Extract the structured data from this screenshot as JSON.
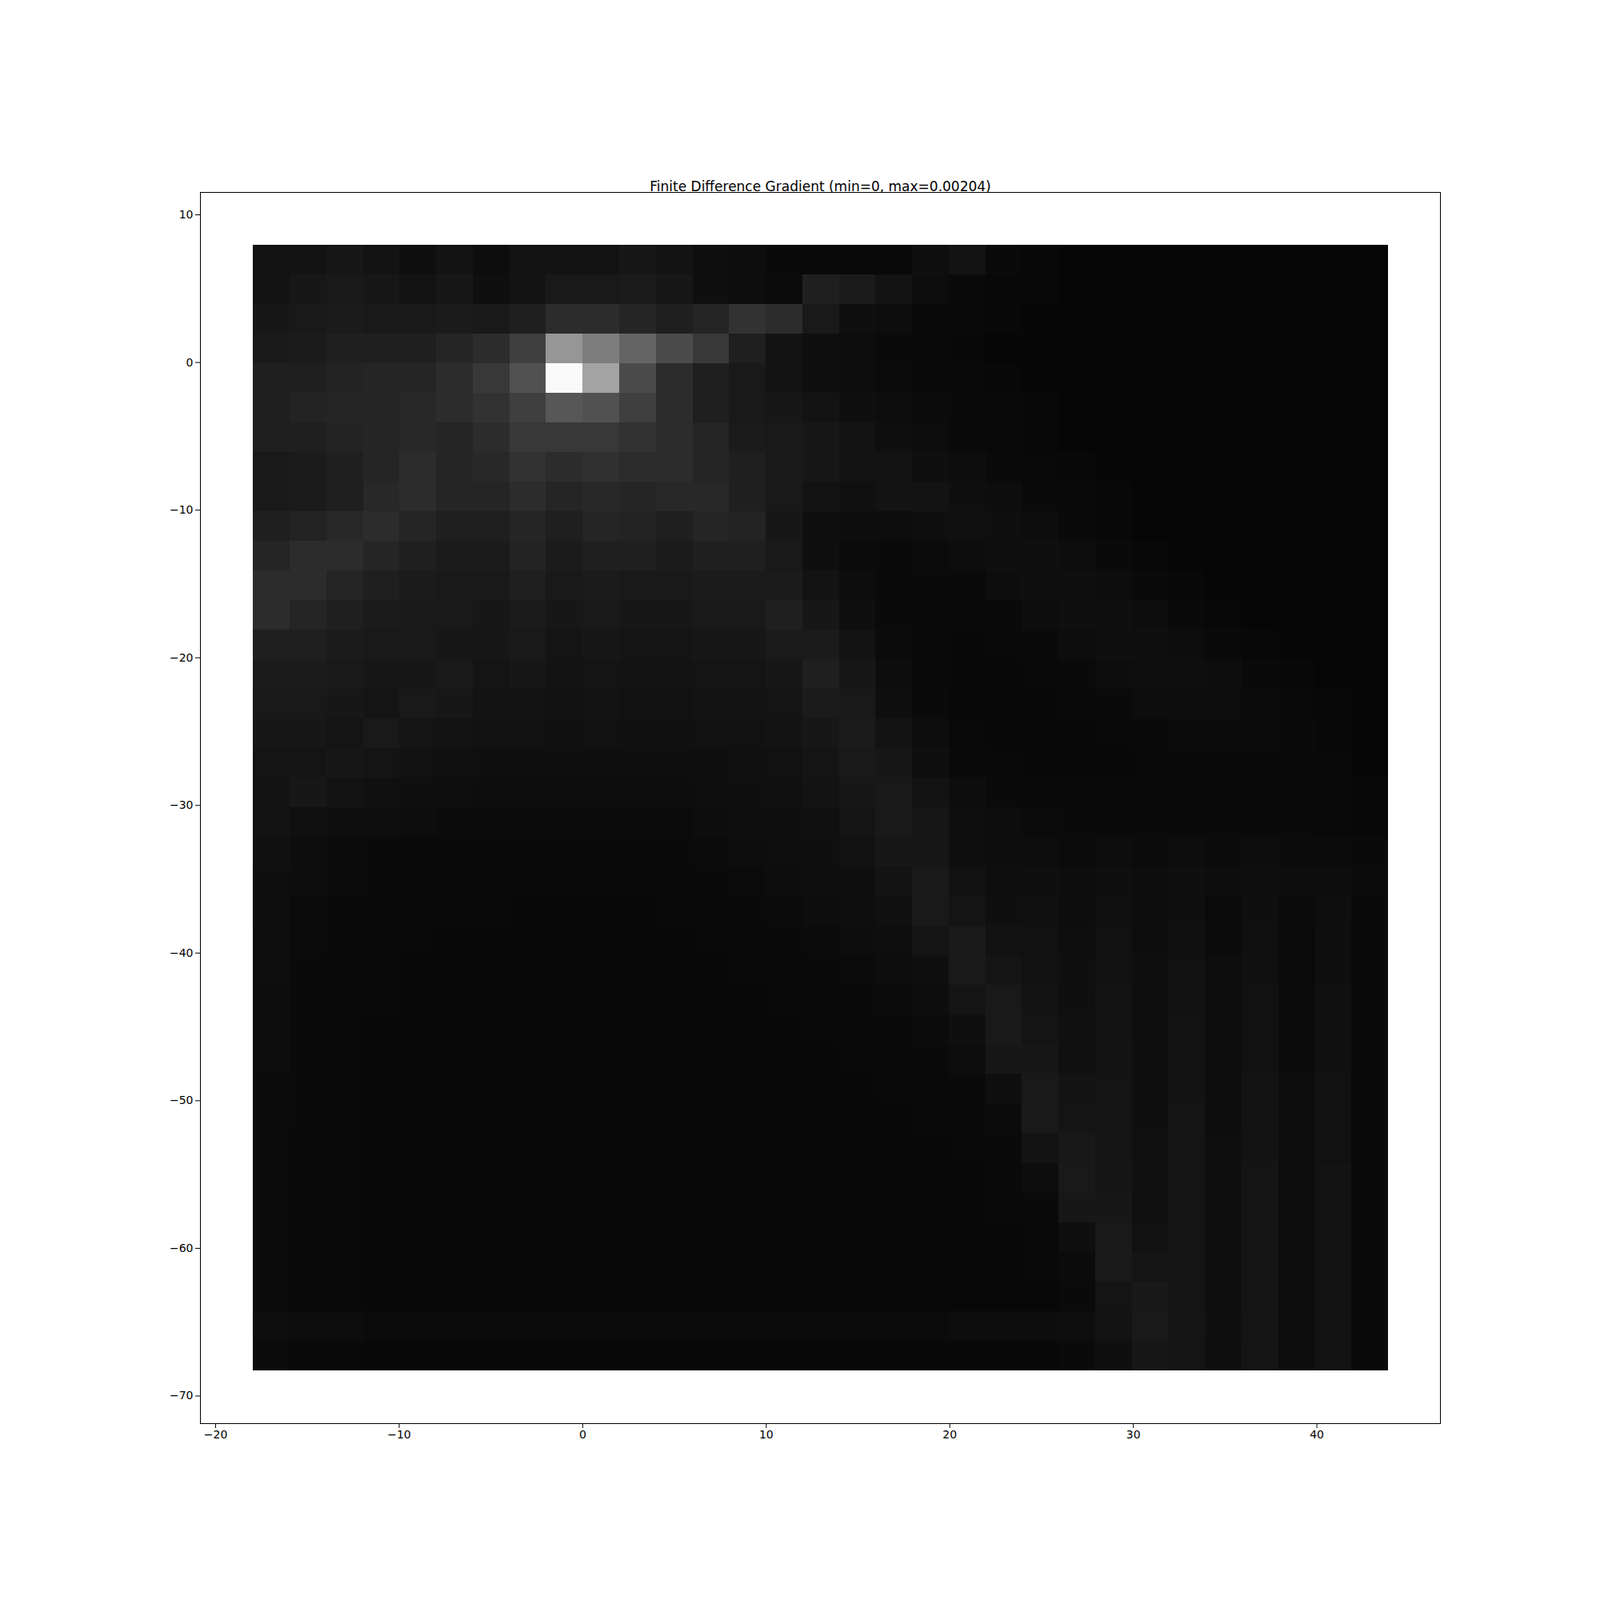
{
  "chart_data": {
    "type": "heatmap",
    "title": "Finite Difference Gradient (min=0, max=0.00204)",
    "xlim": [
      -20.83,
      46.73
    ],
    "ylim": [
      -71.87,
      11.52
    ],
    "xticks": [
      -20,
      -10,
      0,
      10,
      20,
      30,
      40
    ],
    "yticks": [
      -70,
      -60,
      -50,
      -40,
      -30,
      -20,
      -10,
      0,
      10
    ],
    "color": "gray",
    "color_range": [
      0,
      0.00204
    ],
    "cells_xlim": [
      -17.94,
      43.9
    ],
    "cells_ylim": [
      -68.27,
      7.93
    ],
    "cells": [
      [
        0.00015,
        0.00015,
        0.00018,
        0.00015,
        0.00012,
        0.00015,
        0.0001,
        0.00015,
        0.00015,
        0.00015,
        0.00018,
        0.00015,
        0.00012,
        0.0001,
        8e-05,
        7e-05,
        7e-05,
        7e-05,
        0.00012,
        0.00015,
        8e-05,
        6e-05,
        5e-05,
        5e-05,
        5e-05,
        5e-05,
        5e-05,
        5e-05,
        5e-05,
        5e-05,
        5e-05
      ],
      [
        0.00015,
        0.00018,
        0.0002,
        0.00018,
        0.00015,
        0.00018,
        0.00012,
        0.00015,
        0.0002,
        0.0002,
        0.00022,
        0.00018,
        0.00012,
        0.0001,
        9e-05,
        0.00025,
        0.00022,
        0.00015,
        0.0001,
        8e-05,
        6e-05,
        6e-05,
        5e-05,
        5e-05,
        5e-05,
        5e-05,
        5e-05,
        5e-05,
        5e-05,
        5e-05,
        5e-05
      ],
      [
        0.00018,
        0.0002,
        0.00022,
        0.0002,
        0.0002,
        0.00022,
        0.0002,
        0.00025,
        0.00035,
        0.00035,
        0.0003,
        0.00025,
        0.0003,
        0.0004,
        0.00035,
        0.0002,
        0.00012,
        0.0001,
        8e-05,
        7e-05,
        6e-05,
        5e-05,
        5e-05,
        5e-05,
        5e-05,
        5e-05,
        5e-05,
        5e-05,
        5e-05,
        5e-05,
        5e-05
      ],
      [
        0.0002,
        0.00022,
        0.00025,
        0.00025,
        0.00025,
        0.0003,
        0.00035,
        0.0005,
        0.0012,
        0.001,
        0.0008,
        0.0006,
        0.00045,
        0.00025,
        0.00015,
        0.00012,
        0.0001,
        8e-05,
        7e-05,
        6e-05,
        5e-05,
        5e-05,
        5e-05,
        5e-05,
        5e-05,
        5e-05,
        5e-05,
        5e-05,
        5e-05,
        5e-05,
        5e-05
      ],
      [
        0.00025,
        0.00025,
        0.00028,
        0.0003,
        0.0003,
        0.00035,
        0.00045,
        0.00065,
        0.002,
        0.0013,
        0.0006,
        0.00035,
        0.00025,
        0.0002,
        0.00015,
        0.00012,
        0.0001,
        9e-05,
        8e-05,
        7e-05,
        6e-05,
        5e-05,
        5e-05,
        5e-05,
        5e-05,
        5e-05,
        5e-05,
        5e-05,
        5e-05,
        5e-05,
        5e-05
      ],
      [
        0.00025,
        0.00028,
        0.0003,
        0.0003,
        0.00032,
        0.00035,
        0.0004,
        0.0005,
        0.0007,
        0.00065,
        0.0005,
        0.00035,
        0.00025,
        0.0002,
        0.00018,
        0.00015,
        0.00012,
        0.0001,
        9e-05,
        8e-05,
        7e-05,
        6e-05,
        5e-05,
        5e-05,
        5e-05,
        5e-05,
        5e-05,
        5e-05,
        5e-05,
        5e-05,
        5e-05
      ],
      [
        0.00025,
        0.00025,
        0.00028,
        0.0003,
        0.00032,
        0.0003,
        0.00035,
        0.00045,
        0.00045,
        0.00045,
        0.0004,
        0.00035,
        0.0003,
        0.00022,
        0.0002,
        0.00018,
        0.00015,
        0.00012,
        0.0001,
        8e-05,
        7e-05,
        6e-05,
        5e-05,
        5e-05,
        5e-05,
        5e-05,
        5e-05,
        5e-05,
        5e-05,
        5e-05,
        5e-05
      ],
      [
        0.0002,
        0.00022,
        0.00025,
        0.0003,
        0.00035,
        0.0003,
        0.00032,
        0.0004,
        0.00035,
        0.00038,
        0.00035,
        0.00035,
        0.0003,
        0.00025,
        0.0002,
        0.00018,
        0.00015,
        0.00015,
        0.00012,
        0.0001,
        8e-05,
        7e-05,
        6e-05,
        5e-05,
        5e-05,
        5e-05,
        5e-05,
        5e-05,
        5e-05,
        5e-05,
        5e-05
      ],
      [
        0.0002,
        0.00022,
        0.00025,
        0.00032,
        0.00035,
        0.0003,
        0.0003,
        0.00035,
        0.0003,
        0.00032,
        0.0003,
        0.00032,
        0.00032,
        0.00025,
        0.0002,
        0.00015,
        0.00013,
        0.00015,
        0.00015,
        0.00012,
        0.0001,
        8e-05,
        7e-05,
        6e-05,
        5e-05,
        5e-05,
        5e-05,
        5e-05,
        5e-05,
        5e-05,
        5e-05
      ],
      [
        0.00025,
        0.00028,
        0.00032,
        0.00035,
        0.0003,
        0.00025,
        0.00025,
        0.0003,
        0.00025,
        0.0003,
        0.00028,
        0.00025,
        0.0003,
        0.00028,
        0.00018,
        0.00012,
        0.0001,
        0.0001,
        0.00012,
        0.00013,
        0.00012,
        0.0001,
        8e-05,
        6e-05,
        5e-05,
        5e-05,
        5e-05,
        5e-05,
        5e-05,
        5e-05,
        5e-05
      ],
      [
        0.0003,
        0.00035,
        0.00035,
        0.0003,
        0.00025,
        0.00022,
        0.00022,
        0.00028,
        0.00022,
        0.00025,
        0.00025,
        0.00022,
        0.00025,
        0.00025,
        0.0002,
        0.00012,
        9e-05,
        8e-05,
        9e-05,
        0.0001,
        0.00012,
        0.00012,
        0.0001,
        8e-05,
        6e-05,
        5e-05,
        5e-05,
        5e-05,
        5e-05,
        5e-05,
        5e-05
      ],
      [
        0.00035,
        0.00035,
        0.0003,
        0.00025,
        0.00022,
        0.0002,
        0.0002,
        0.00025,
        0.0002,
        0.00022,
        0.0002,
        0.0002,
        0.00022,
        0.00022,
        0.00022,
        0.00015,
        0.0001,
        8e-05,
        8e-05,
        8e-05,
        0.0001,
        0.00012,
        0.00012,
        0.0001,
        8e-05,
        6e-05,
        5e-05,
        5e-05,
        5e-05,
        5e-05,
        5e-05
      ],
      [
        0.00035,
        0.0003,
        0.00025,
        0.00022,
        0.0002,
        0.0002,
        0.00018,
        0.00022,
        0.00018,
        0.0002,
        0.00018,
        0.00018,
        0.0002,
        0.0002,
        0.00025,
        0.00018,
        0.00012,
        8e-05,
        7e-05,
        7e-05,
        8e-05,
        0.0001,
        0.00012,
        0.00012,
        0.0001,
        8e-05,
        6e-05,
        5e-05,
        5e-05,
        5e-05,
        5e-05
      ],
      [
        0.00025,
        0.00025,
        0.00022,
        0.0002,
        0.0002,
        0.00018,
        0.00018,
        0.0002,
        0.00016,
        0.00018,
        0.00016,
        0.00016,
        0.00018,
        0.00018,
        0.00022,
        0.00022,
        0.00015,
        9e-05,
        7e-05,
        6e-05,
        7e-05,
        8e-05,
        0.0001,
        0.00012,
        0.00012,
        0.0001,
        8e-05,
        6e-05,
        5e-05,
        5e-05,
        5e-05
      ],
      [
        0.00022,
        0.00022,
        0.0002,
        0.00018,
        0.00018,
        0.0002,
        0.00016,
        0.00018,
        0.00015,
        0.00016,
        0.00015,
        0.00015,
        0.00016,
        0.00016,
        0.00018,
        0.00025,
        0.00018,
        0.0001,
        7e-05,
        6e-05,
        6e-05,
        7e-05,
        8e-05,
        0.0001,
        0.00011,
        0.00011,
        0.0001,
        8e-05,
        6e-05,
        5e-05,
        5e-05
      ],
      [
        0.0002,
        0.0002,
        0.00018,
        0.00016,
        0.0002,
        0.00018,
        0.00015,
        0.00015,
        0.00014,
        0.00015,
        0.00014,
        0.00014,
        0.00015,
        0.00015,
        0.00016,
        0.00022,
        0.0002,
        0.00012,
        8e-05,
        6e-05,
        6e-05,
        6e-05,
        7e-05,
        8e-05,
        0.0001,
        0.0001,
        0.0001,
        9e-05,
        7e-05,
        6e-05,
        5e-05
      ],
      [
        0.00018,
        0.00018,
        0.00016,
        0.0002,
        0.00016,
        0.00015,
        0.00014,
        0.00014,
        0.00013,
        0.00014,
        0.00013,
        0.00013,
        0.00014,
        0.00014,
        0.00015,
        0.00018,
        0.00022,
        0.00015,
        0.0001,
        7e-05,
        6e-05,
        6e-05,
        6e-05,
        7e-05,
        8e-05,
        9e-05,
        9e-05,
        9e-05,
        8e-05,
        6e-05,
        5e-05
      ],
      [
        0.00016,
        0.00016,
        0.00018,
        0.00016,
        0.00014,
        0.00013,
        0.00012,
        0.00012,
        0.00012,
        0.00012,
        0.00012,
        0.00012,
        0.00012,
        0.00013,
        0.00014,
        0.00016,
        0.0002,
        0.00018,
        0.00012,
        8e-05,
        7e-05,
        6e-05,
        6e-05,
        6e-05,
        7e-05,
        8e-05,
        8e-05,
        8e-05,
        8e-05,
        7e-05,
        5e-05
      ],
      [
        0.00015,
        0.00018,
        0.00015,
        0.00013,
        0.00012,
        0.00011,
        0.0001,
        0.0001,
        0.0001,
        0.0001,
        0.0001,
        0.0001,
        0.00011,
        0.00012,
        0.00013,
        0.00015,
        0.00018,
        0.0002,
        0.00015,
        0.0001,
        8e-05,
        7e-05,
        7e-05,
        7e-05,
        7e-05,
        7e-05,
        8e-05,
        8e-05,
        8e-05,
        7e-05,
        6e-05
      ],
      [
        0.00015,
        0.00013,
        0.00012,
        0.00011,
        0.0001,
        9e-05,
        9e-05,
        9e-05,
        9e-05,
        9e-05,
        9e-05,
        9e-05,
        0.0001,
        0.00011,
        0.00012,
        0.00013,
        0.00016,
        0.0002,
        0.00018,
        0.00012,
        0.0001,
        9e-05,
        8e-05,
        8e-05,
        8e-05,
        8e-05,
        8e-05,
        8e-05,
        8e-05,
        7e-05,
        6e-05
      ],
      [
        0.00013,
        0.0001,
        9e-05,
        8e-05,
        8e-05,
        8e-05,
        8e-05,
        8e-05,
        8e-05,
        8e-05,
        8e-05,
        8e-05,
        9e-05,
        0.0001,
        0.00011,
        0.00012,
        0.00014,
        0.00018,
        0.00018,
        0.00012,
        0.0001,
        0.0001,
        9e-05,
        0.0001,
        9e-05,
        0.0001,
        9e-05,
        0.0001,
        9e-05,
        9e-05,
        8e-05
      ],
      [
        0.00012,
        0.0001,
        9e-05,
        8e-05,
        8e-05,
        7e-05,
        7e-05,
        7e-05,
        7e-05,
        7e-05,
        7e-05,
        7e-05,
        8e-05,
        9e-05,
        0.0001,
        0.00011,
        0.00012,
        0.00015,
        0.0002,
        0.00014,
        0.00011,
        0.00012,
        0.0001,
        0.00012,
        0.0001,
        0.00012,
        0.0001,
        0.00011,
        0.0001,
        0.0001,
        9e-05
      ],
      [
        0.00012,
        9e-05,
        8e-05,
        8e-05,
        7e-05,
        7e-05,
        7e-05,
        6e-05,
        6e-05,
        6e-05,
        6e-05,
        7e-05,
        7e-05,
        8e-05,
        9e-05,
        0.0001,
        0.00011,
        0.00013,
        0.0002,
        0.00016,
        0.00012,
        0.00013,
        0.0001,
        0.00013,
        0.0001,
        0.00012,
        9e-05,
        0.00012,
        9e-05,
        0.00011,
        8e-05
      ],
      [
        0.00011,
        9e-05,
        8e-05,
        7e-05,
        7e-05,
        6e-05,
        6e-05,
        6e-05,
        6e-05,
        6e-05,
        6e-05,
        6e-05,
        7e-05,
        7e-05,
        8e-05,
        9e-05,
        0.0001,
        0.00011,
        0.00016,
        0.0002,
        0.00014,
        0.00014,
        0.00011,
        0.00014,
        0.0001,
        0.00013,
        9e-05,
        0.00013,
        9e-05,
        0.00012,
        8e-05
      ],
      [
        0.00011,
        8e-05,
        7e-05,
        7e-05,
        6e-05,
        6e-05,
        6e-05,
        6e-05,
        6e-05,
        6e-05,
        6e-05,
        6e-05,
        6e-05,
        7e-05,
        7e-05,
        8e-05,
        9e-05,
        0.0001,
        0.00012,
        0.0002,
        0.00016,
        0.00014,
        0.00012,
        0.00014,
        0.00011,
        0.00014,
        0.0001,
        0.00013,
        9e-05,
        0.00012,
        8e-05
      ],
      [
        0.0001,
        8e-05,
        7e-05,
        7e-05,
        6e-05,
        6e-05,
        6e-05,
        6e-05,
        6e-05,
        6e-05,
        6e-05,
        6e-05,
        6e-05,
        6e-05,
        7e-05,
        7e-05,
        8e-05,
        9e-05,
        0.0001,
        0.00016,
        0.0002,
        0.00015,
        0.00012,
        0.00015,
        0.00011,
        0.00014,
        0.0001,
        0.00014,
        9e-05,
        0.00013,
        8e-05
      ],
      [
        0.0001,
        8e-05,
        7e-05,
        6e-05,
        6e-05,
        6e-05,
        6e-05,
        6e-05,
        6e-05,
        6e-05,
        6e-05,
        6e-05,
        6e-05,
        6e-05,
        6e-05,
        7e-05,
        7e-05,
        8e-05,
        9e-05,
        0.00012,
        0.0002,
        0.00016,
        0.00013,
        0.00015,
        0.00011,
        0.00015,
        0.0001,
        0.00014,
        9e-05,
        0.00013,
        8e-05
      ],
      [
        0.0001,
        8e-05,
        7e-05,
        6e-05,
        6e-05,
        6e-05,
        6e-05,
        6e-05,
        6e-05,
        6e-05,
        6e-05,
        6e-05,
        6e-05,
        6e-05,
        6e-05,
        6e-05,
        7e-05,
        7e-05,
        8e-05,
        0.0001,
        0.00018,
        0.00018,
        0.00013,
        0.00015,
        0.00012,
        0.00015,
        0.0001,
        0.00014,
        9e-05,
        0.00013,
        8e-05
      ],
      [
        9e-05,
        8e-05,
        7e-05,
        6e-05,
        6e-05,
        6e-05,
        6e-05,
        6e-05,
        6e-05,
        6e-05,
        6e-05,
        6e-05,
        6e-05,
        6e-05,
        6e-05,
        6e-05,
        6e-05,
        7e-05,
        7e-05,
        8e-05,
        0.00012,
        0.0002,
        0.00015,
        0.00016,
        0.00012,
        0.00015,
        0.0001,
        0.00015,
        0.0001,
        0.00014,
        8e-05
      ],
      [
        9e-05,
        8e-05,
        7e-05,
        6e-05,
        6e-05,
        6e-05,
        6e-05,
        6e-05,
        6e-05,
        6e-05,
        6e-05,
        6e-05,
        6e-05,
        6e-05,
        6e-05,
        6e-05,
        6e-05,
        6e-05,
        7e-05,
        7e-05,
        9e-05,
        0.0002,
        0.00016,
        0.00016,
        0.00012,
        0.00016,
        0.0001,
        0.00015,
        0.0001,
        0.00014,
        8e-05
      ],
      [
        9e-05,
        7e-05,
        7e-05,
        6e-05,
        6e-05,
        6e-05,
        6e-05,
        6e-05,
        6e-05,
        6e-05,
        6e-05,
        6e-05,
        6e-05,
        6e-05,
        6e-05,
        6e-05,
        6e-05,
        6e-05,
        6e-05,
        7e-05,
        8e-05,
        0.00015,
        0.00019,
        0.00016,
        0.00013,
        0.00016,
        0.00011,
        0.00015,
        0.0001,
        0.00014,
        8e-05
      ],
      [
        9e-05,
        7e-05,
        7e-05,
        6e-05,
        6e-05,
        6e-05,
        6e-05,
        6e-05,
        6e-05,
        6e-05,
        6e-05,
        6e-05,
        6e-05,
        6e-05,
        6e-05,
        6e-05,
        6e-05,
        6e-05,
        6e-05,
        6e-05,
        7e-05,
        0.0001,
        0.0002,
        0.00017,
        0.00013,
        0.00016,
        0.00011,
        0.00016,
        0.0001,
        0.00015,
        8e-05
      ],
      [
        9e-05,
        7e-05,
        7e-05,
        6e-05,
        6e-05,
        6e-05,
        6e-05,
        6e-05,
        6e-05,
        6e-05,
        6e-05,
        6e-05,
        6e-05,
        6e-05,
        6e-05,
        6e-05,
        6e-05,
        6e-05,
        6e-05,
        6e-05,
        7e-05,
        8e-05,
        0.00018,
        0.00018,
        0.00013,
        0.00016,
        0.00011,
        0.00016,
        0.0001,
        0.00015,
        8e-05
      ],
      [
        9e-05,
        7e-05,
        7e-05,
        6e-05,
        6e-05,
        6e-05,
        6e-05,
        6e-05,
        6e-05,
        6e-05,
        6e-05,
        6e-05,
        6e-05,
        6e-05,
        6e-05,
        6e-05,
        6e-05,
        6e-05,
        6e-05,
        6e-05,
        6e-05,
        7e-05,
        0.00012,
        0.0002,
        0.00014,
        0.00016,
        0.00011,
        0.00016,
        0.0001,
        0.00015,
        8e-05
      ],
      [
        9e-05,
        7e-05,
        7e-05,
        6e-05,
        6e-05,
        6e-05,
        6e-05,
        6e-05,
        6e-05,
        6e-05,
        6e-05,
        6e-05,
        6e-05,
        6e-05,
        6e-05,
        6e-05,
        6e-05,
        6e-05,
        6e-05,
        6e-05,
        6e-05,
        7e-05,
        9e-05,
        0.0002,
        0.00016,
        0.00016,
        0.00011,
        0.00016,
        0.0001,
        0.00015,
        8e-05
      ],
      [
        9e-05,
        7e-05,
        7e-05,
        6e-05,
        6e-05,
        6e-05,
        6e-05,
        6e-05,
        6e-05,
        6e-05,
        6e-05,
        6e-05,
        6e-05,
        6e-05,
        6e-05,
        6e-05,
        6e-05,
        6e-05,
        6e-05,
        6e-05,
        6e-05,
        6e-05,
        8e-05,
        0.00016,
        0.00019,
        0.00016,
        0.00011,
        0.00016,
        0.0001,
        0.00015,
        8e-05
      ],
      [
        0.00012,
        0.0001,
        0.0001,
        9e-05,
        9e-05,
        9e-05,
        9e-05,
        9e-05,
        9e-05,
        9e-05,
        9e-05,
        9e-05,
        9e-05,
        9e-05,
        9e-05,
        9e-05,
        9e-05,
        9e-05,
        9e-05,
        0.0001,
        0.0001,
        0.0001,
        0.00011,
        0.00015,
        0.0002,
        0.00017,
        0.00012,
        0.00016,
        0.0001,
        0.00015,
        8e-05
      ],
      [
        9e-05,
        7e-05,
        7e-05,
        6e-05,
        6e-05,
        6e-05,
        6e-05,
        6e-05,
        6e-05,
        6e-05,
        6e-05,
        6e-05,
        6e-05,
        6e-05,
        6e-05,
        6e-05,
        6e-05,
        6e-05,
        6e-05,
        6e-05,
        6e-05,
        6e-05,
        8e-05,
        0.00012,
        0.00018,
        0.00016,
        0.00011,
        0.00016,
        0.0001,
        0.00015,
        8e-05
      ]
    ]
  }
}
